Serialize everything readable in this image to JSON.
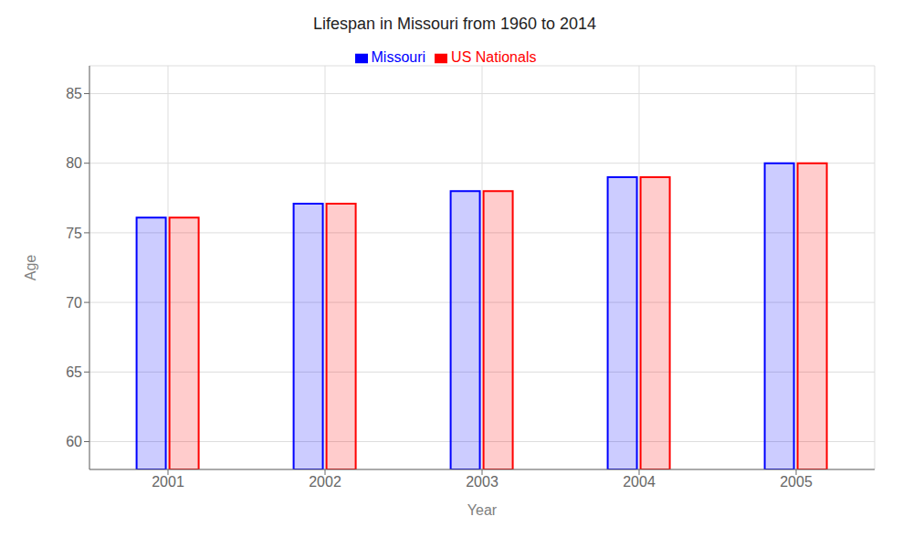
{
  "chart_data": {
    "type": "bar",
    "title": "Lifespan in Missouri from 1960 to 2014",
    "x_label": "Year",
    "y_label": "Age",
    "categories": [
      "2001",
      "2002",
      "2003",
      "2004",
      "2005"
    ],
    "series": [
      {
        "name": "Missouri",
        "color": "#0000ff",
        "values": [
          76.1,
          77.1,
          78.0,
          79.0,
          80.0
        ]
      },
      {
        "name": "US Nationals",
        "color": "#ff0000",
        "values": [
          76.1,
          77.1,
          78.0,
          79.0,
          80.0
        ]
      }
    ],
    "ylim": [
      58,
      87
    ],
    "yticks": [
      60,
      65,
      70,
      75,
      80,
      85
    ],
    "grid": true,
    "legend": "top"
  }
}
